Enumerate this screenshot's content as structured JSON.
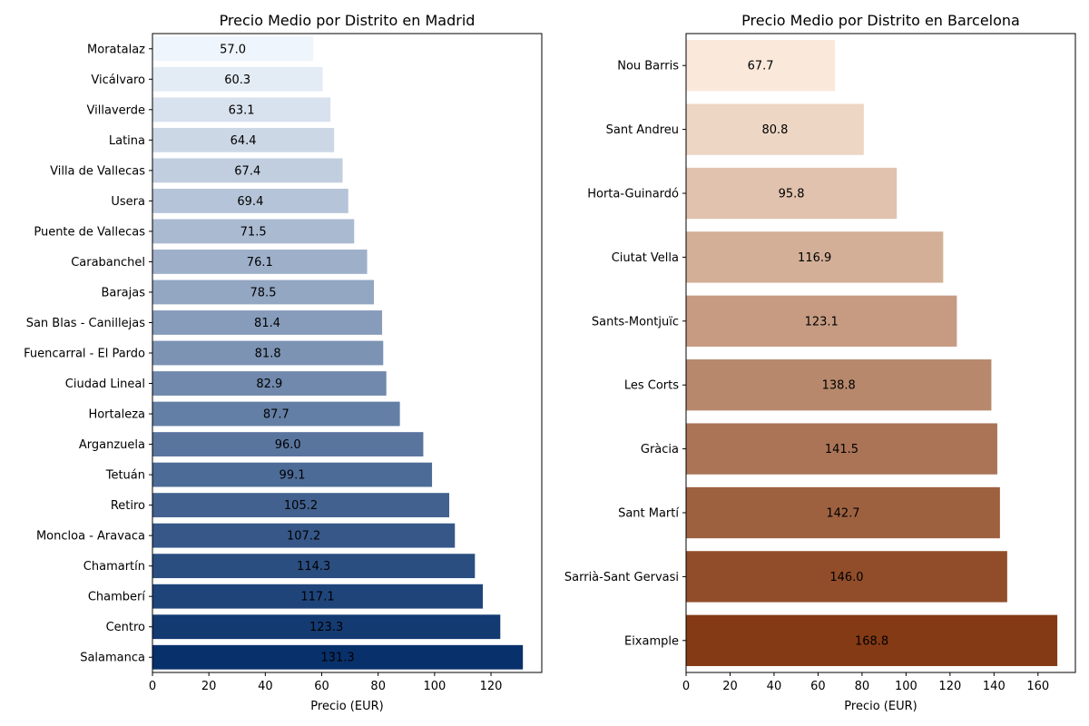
{
  "chart_data": [
    {
      "type": "bar",
      "orientation": "horizontal",
      "title": "Precio Medio por Distrito en Madrid",
      "xlabel": "Precio (EUR)",
      "ylabel": "",
      "xlim": [
        0,
        138
      ],
      "xticks": [
        0,
        20,
        40,
        60,
        80,
        100,
        120
      ],
      "grid": false,
      "palette": [
        "#eff5fc",
        "#08306b"
      ],
      "categories": [
        "Moratalaz",
        "Vicálvaro",
        "Villaverde",
        "Latina",
        "Villa de Vallecas",
        "Usera",
        "Puente de Vallecas",
        "Carabanchel",
        "Barajas",
        "San Blas - Canillejas",
        "Fuencarral - El Pardo",
        "Ciudad Lineal",
        "Hortaleza",
        "Arganzuela",
        "Tetuán",
        "Retiro",
        "Moncloa - Aravaca",
        "Chamartín",
        "Chamberí",
        "Centro",
        "Salamanca"
      ],
      "values": [
        57.0,
        60.3,
        63.1,
        64.4,
        67.4,
        69.4,
        71.5,
        76.1,
        78.5,
        81.4,
        81.8,
        82.9,
        87.7,
        96.0,
        99.1,
        105.2,
        107.2,
        114.3,
        117.1,
        123.3,
        131.3
      ],
      "data_labels": [
        "57.0",
        "60.3",
        "63.1",
        "64.4",
        "67.4",
        "69.4",
        "71.5",
        "76.1",
        "78.5",
        "81.4",
        "81.8",
        "82.9",
        "87.7",
        "96.0",
        "99.1",
        "105.2",
        "107.2",
        "114.3",
        "117.1",
        "123.3",
        "131.3"
      ]
    },
    {
      "type": "bar",
      "orientation": "horizontal",
      "title": "Precio Medio por Distrito en Barcelona",
      "xlabel": "Precio (EUR)",
      "ylabel": "",
      "xlim": [
        0,
        177
      ],
      "xticks": [
        0,
        20,
        40,
        60,
        80,
        100,
        120,
        140,
        160
      ],
      "grid": false,
      "palette": [
        "#fae9da",
        "#843a14"
      ],
      "categories": [
        "Nou Barris",
        "Sant Andreu",
        "Horta-Guinardó",
        "Ciutat Vella",
        "Sants-Montjuïc",
        "Les Corts",
        "Gràcia",
        "Sant Martí",
        "Sarrià-Sant Gervasi",
        "Eixample"
      ],
      "values": [
        67.7,
        80.8,
        95.8,
        116.9,
        123.1,
        138.8,
        141.5,
        142.7,
        146.0,
        168.8
      ],
      "data_labels": [
        "67.7",
        "80.8",
        "95.8",
        "116.9",
        "123.1",
        "138.8",
        "141.5",
        "142.7",
        "146.0",
        "168.8"
      ]
    }
  ]
}
